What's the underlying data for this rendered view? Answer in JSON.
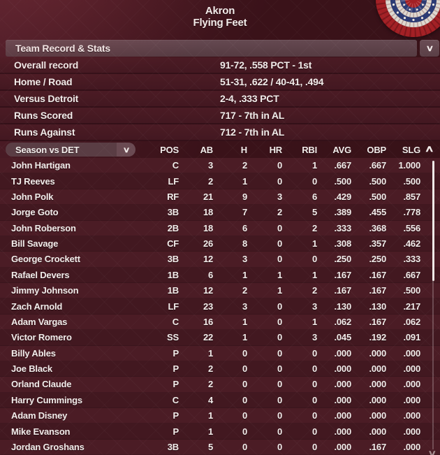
{
  "header": {
    "team_city": "Akron",
    "team_name": "Flying Feet",
    "logo": "patriotic-bunting-rosette"
  },
  "record_panel": {
    "title": "Team Record & Stats",
    "dropdown_icon": "∨",
    "rows": [
      {
        "label": "Overall record",
        "value": "91-72, .558 PCT - 1st"
      },
      {
        "label": "Home / Road",
        "value": "51-31, .622 / 40-41, .494"
      },
      {
        "label": "Versus Detroit",
        "value": "2-4, .333 PCT"
      },
      {
        "label": "Runs Scored",
        "value": "717 - 7th in AL"
      },
      {
        "label": "Runs Against",
        "value": "712 - 7th in AL"
      }
    ]
  },
  "stats_table": {
    "selector_label": "Season vs DET",
    "selector_icon": "∨",
    "columns": [
      "POS",
      "AB",
      "H",
      "HR",
      "RBI",
      "AVG",
      "OBP",
      "SLG"
    ],
    "players": [
      {
        "name": "John Hartigan",
        "pos": "C",
        "ab": "3",
        "h": "2",
        "hr": "0",
        "rbi": "1",
        "avg": ".667",
        "obp": ".667",
        "slg": "1.000"
      },
      {
        "name": "TJ Reeves",
        "pos": "LF",
        "ab": "2",
        "h": "1",
        "hr": "0",
        "rbi": "0",
        "avg": ".500",
        "obp": ".500",
        "slg": ".500"
      },
      {
        "name": "John Polk",
        "pos": "RF",
        "ab": "21",
        "h": "9",
        "hr": "3",
        "rbi": "6",
        "avg": ".429",
        "obp": ".500",
        "slg": ".857"
      },
      {
        "name": "Jorge Goto",
        "pos": "3B",
        "ab": "18",
        "h": "7",
        "hr": "2",
        "rbi": "5",
        "avg": ".389",
        "obp": ".455",
        "slg": ".778"
      },
      {
        "name": "John Roberson",
        "pos": "2B",
        "ab": "18",
        "h": "6",
        "hr": "0",
        "rbi": "2",
        "avg": ".333",
        "obp": ".368",
        "slg": ".556"
      },
      {
        "name": "Bill Savage",
        "pos": "CF",
        "ab": "26",
        "h": "8",
        "hr": "0",
        "rbi": "1",
        "avg": ".308",
        "obp": ".357",
        "slg": ".462"
      },
      {
        "name": "George Crockett",
        "pos": "3B",
        "ab": "12",
        "h": "3",
        "hr": "0",
        "rbi": "0",
        "avg": ".250",
        "obp": ".250",
        "slg": ".333"
      },
      {
        "name": "Rafael Devers",
        "pos": "1B",
        "ab": "6",
        "h": "1",
        "hr": "1",
        "rbi": "1",
        "avg": ".167",
        "obp": ".167",
        "slg": ".667"
      },
      {
        "name": "Jimmy Johnson",
        "pos": "1B",
        "ab": "12",
        "h": "2",
        "hr": "1",
        "rbi": "2",
        "avg": ".167",
        "obp": ".167",
        "slg": ".500"
      },
      {
        "name": "Zach Arnold",
        "pos": "LF",
        "ab": "23",
        "h": "3",
        "hr": "0",
        "rbi": "3",
        "avg": ".130",
        "obp": ".130",
        "slg": ".217"
      },
      {
        "name": "Adam Vargas",
        "pos": "C",
        "ab": "16",
        "h": "1",
        "hr": "0",
        "rbi": "1",
        "avg": ".062",
        "obp": ".167",
        "slg": ".062"
      },
      {
        "name": "Victor Romero",
        "pos": "SS",
        "ab": "22",
        "h": "1",
        "hr": "0",
        "rbi": "3",
        "avg": ".045",
        "obp": ".192",
        "slg": ".091"
      },
      {
        "name": "Billy Ables",
        "pos": "P",
        "ab": "1",
        "h": "0",
        "hr": "0",
        "rbi": "0",
        "avg": ".000",
        "obp": ".000",
        "slg": ".000"
      },
      {
        "name": "Joe Black",
        "pos": "P",
        "ab": "2",
        "h": "0",
        "hr": "0",
        "rbi": "0",
        "avg": ".000",
        "obp": ".000",
        "slg": ".000"
      },
      {
        "name": "Orland Claude",
        "pos": "P",
        "ab": "2",
        "h": "0",
        "hr": "0",
        "rbi": "0",
        "avg": ".000",
        "obp": ".000",
        "slg": ".000"
      },
      {
        "name": "Harry Cummings",
        "pos": "C",
        "ab": "4",
        "h": "0",
        "hr": "0",
        "rbi": "0",
        "avg": ".000",
        "obp": ".000",
        "slg": ".000"
      },
      {
        "name": "Adam Disney",
        "pos": "P",
        "ab": "1",
        "h": "0",
        "hr": "0",
        "rbi": "0",
        "avg": ".000",
        "obp": ".000",
        "slg": ".000"
      },
      {
        "name": "Mike Evanson",
        "pos": "P",
        "ab": "1",
        "h": "0",
        "hr": "0",
        "rbi": "0",
        "avg": ".000",
        "obp": ".000",
        "slg": ".000"
      },
      {
        "name": "Jordan Groshans",
        "pos": "3B",
        "ab": "5",
        "h": "0",
        "hr": "0",
        "rbi": "0",
        "avg": ".000",
        "obp": ".167",
        "slg": ".000"
      }
    ]
  },
  "scrollbar": {
    "up_icon": "∧",
    "down_icon": "∨"
  },
  "colors": {
    "background": "#3A1219",
    "panel_bar": "#5D4047",
    "row_dark": "#421820",
    "row_light": "#4B1C25",
    "text": "#F2ECEA",
    "logo_red": "#A32025",
    "logo_blue": "#2C3B74",
    "logo_white": "#DED8D0"
  }
}
